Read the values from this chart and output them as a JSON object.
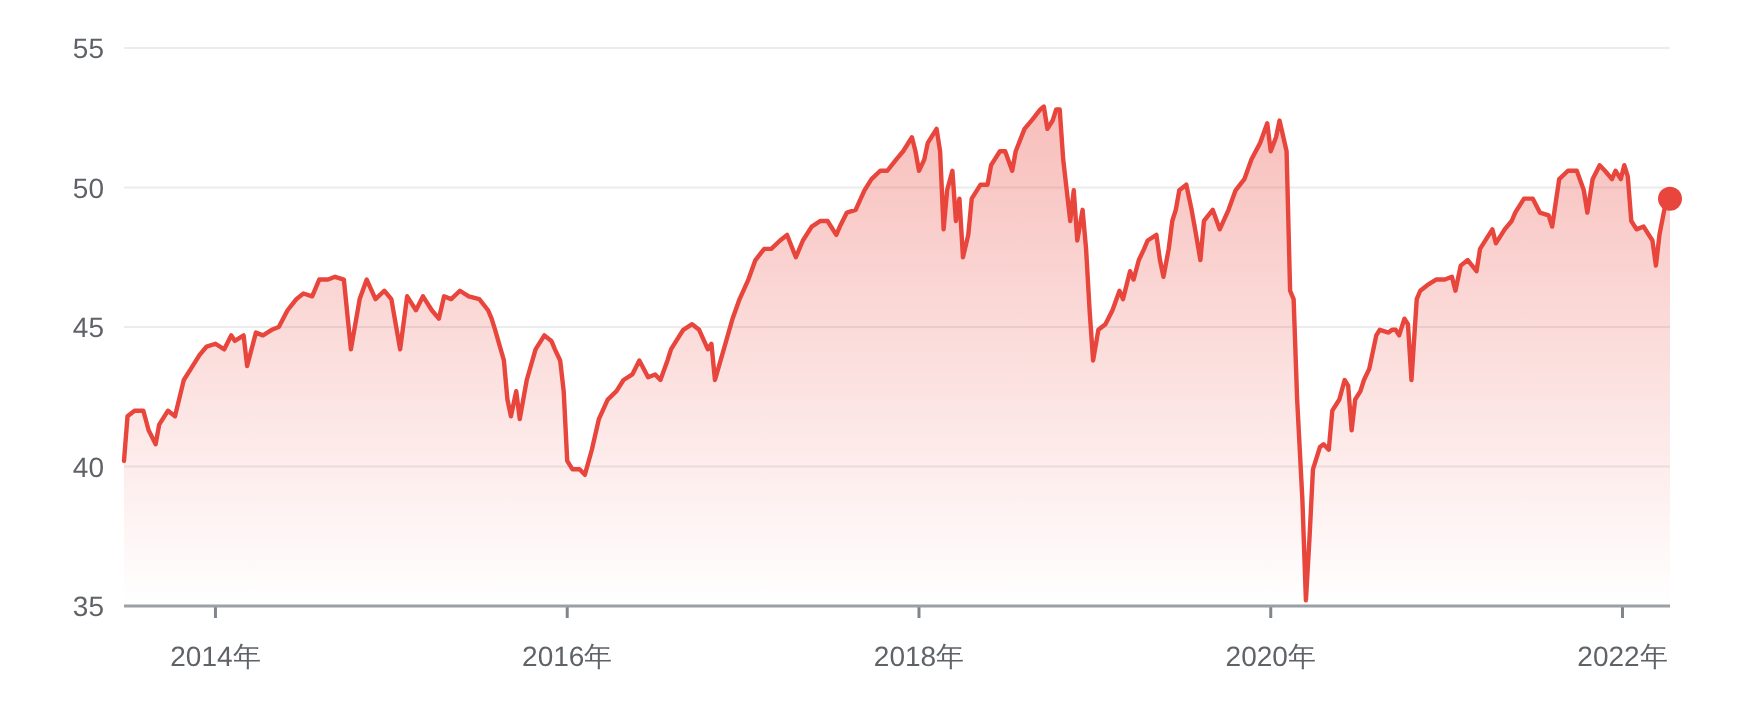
{
  "chart_data": {
    "type": "area",
    "xlim": [
      2013.48,
      2022.27
    ],
    "ylim": [
      35,
      55
    ],
    "xticks": [
      {
        "value": 2014,
        "label": "2014年"
      },
      {
        "value": 2016,
        "label": "2016年"
      },
      {
        "value": 2018,
        "label": "2018年"
      },
      {
        "value": 2020,
        "label": "2020年"
      },
      {
        "value": 2022,
        "label": "2022年"
      }
    ],
    "yticks": [
      35,
      40,
      45,
      50,
      55
    ],
    "grid": "y",
    "series": [
      {
        "color": "#e8453c",
        "x": [
          2013.48,
          2013.5,
          2013.54,
          2013.59,
          2013.62,
          2013.66,
          2013.68,
          2013.73,
          2013.77,
          2013.82,
          2013.86,
          2013.91,
          2013.95,
          2014.0,
          2014.05,
          2014.09,
          2014.11,
          2014.16,
          2014.18,
          2014.23,
          2014.27,
          2014.32,
          2014.36,
          2014.41,
          2014.46,
          2014.5,
          2014.55,
          2014.59,
          2014.64,
          2014.68,
          2014.73,
          2014.77,
          2014.82,
          2014.86,
          2014.91,
          2014.96,
          2015.0,
          2015.05,
          2015.09,
          2015.14,
          2015.18,
          2015.23,
          2015.27,
          2015.3,
          2015.34,
          2015.39,
          2015.44,
          2015.5,
          2015.55,
          2015.57,
          2015.59,
          2015.64,
          2015.66,
          2015.68,
          2015.71,
          2015.73,
          2015.77,
          2015.82,
          2015.87,
          2015.91,
          2015.93,
          2015.96,
          2015.98,
          2016.0,
          2016.03,
          2016.07,
          2016.1,
          2016.14,
          2016.18,
          2016.23,
          2016.28,
          2016.32,
          2016.37,
          2016.41,
          2016.46,
          2016.5,
          2016.53,
          2016.57,
          2016.59,
          2016.62,
          2016.66,
          2016.71,
          2016.75,
          2016.8,
          2016.82,
          2016.84,
          2016.89,
          2016.94,
          2016.98,
          2017.03,
          2017.07,
          2017.12,
          2017.16,
          2017.21,
          2017.25,
          2017.3,
          2017.34,
          2017.39,
          2017.44,
          2017.48,
          2017.53,
          2017.55,
          2017.59,
          2017.64,
          2017.69,
          2017.73,
          2017.78,
          2017.82,
          2017.87,
          2017.91,
          2017.96,
          2017.98,
          2018.0,
          2018.03,
          2018.05,
          2018.1,
          2018.12,
          2018.14,
          2018.16,
          2018.19,
          2018.21,
          2018.23,
          2018.25,
          2018.28,
          2018.3,
          2018.35,
          2018.39,
          2018.41,
          2018.46,
          2018.49,
          2018.53,
          2018.55,
          2018.6,
          2018.64,
          2018.69,
          2018.71,
          2018.73,
          2018.76,
          2018.78,
          2018.8,
          2018.82,
          2018.86,
          2018.88,
          2018.9,
          2018.93,
          2018.95,
          2018.97,
          2018.99,
          2019.02,
          2019.06,
          2019.1,
          2019.14,
          2019.16,
          2019.2,
          2019.22,
          2019.25,
          2019.28,
          2019.3,
          2019.35,
          2019.37,
          2019.39,
          2019.42,
          2019.44,
          2019.46,
          2019.48,
          2019.52,
          2019.55,
          2019.57,
          2019.6,
          2019.62,
          2019.67,
          2019.71,
          2019.76,
          2019.8,
          2019.85,
          2019.89,
          2019.94,
          2019.98,
          2020.0,
          2020.03,
          2020.05,
          2020.09,
          2020.11,
          2020.13,
          2020.15,
          2020.18,
          2020.2,
          2020.22,
          2020.24,
          2020.28,
          2020.3,
          2020.33,
          2020.35,
          2020.39,
          2020.42,
          2020.44,
          2020.46,
          2020.48,
          2020.51,
          2020.53,
          2020.56,
          2020.6,
          2020.62,
          2020.67,
          2020.69,
          2020.71,
          2020.73,
          2020.76,
          2020.78,
          2020.8,
          2020.83,
          2020.85,
          2020.89,
          2020.94,
          2020.99,
          2021.03,
          2021.05,
          2021.08,
          2021.12,
          2021.17,
          2021.19,
          2021.24,
          2021.26,
          2021.28,
          2021.33,
          2021.37,
          2021.39,
          2021.44,
          2021.49,
          2021.53,
          2021.58,
          2021.6,
          2021.64,
          2021.69,
          2021.74,
          2021.78,
          2021.8,
          2021.83,
          2021.87,
          2021.9,
          2021.94,
          2021.96,
          2021.99,
          2022.01,
          2022.03,
          2022.05,
          2022.08,
          2022.12,
          2022.17,
          2022.19,
          2022.21,
          2022.25,
          2022.27
        ],
        "values": [
          40.2,
          41.8,
          42.0,
          42.0,
          41.3,
          40.8,
          41.5,
          42.0,
          41.8,
          43.1,
          43.5,
          44.0,
          44.3,
          44.4,
          44.2,
          44.7,
          44.5,
          44.7,
          43.6,
          44.8,
          44.7,
          44.9,
          45.0,
          45.6,
          46.0,
          46.2,
          46.1,
          46.7,
          46.7,
          46.8,
          46.7,
          44.2,
          46.0,
          46.7,
          46.0,
          46.3,
          46.0,
          44.2,
          46.1,
          45.6,
          46.1,
          45.6,
          45.3,
          46.1,
          46.0,
          46.3,
          46.1,
          46.0,
          45.6,
          45.3,
          44.9,
          43.8,
          42.4,
          41.8,
          42.7,
          41.7,
          43.1,
          44.2,
          44.7,
          44.5,
          44.2,
          43.8,
          42.7,
          40.2,
          39.9,
          39.9,
          39.7,
          40.6,
          41.7,
          42.4,
          42.7,
          43.1,
          43.3,
          43.8,
          43.2,
          43.3,
          43.1,
          43.8,
          44.2,
          44.5,
          44.9,
          45.1,
          44.9,
          44.2,
          44.4,
          43.1,
          44.2,
          45.3,
          46.0,
          46.7,
          47.4,
          47.8,
          47.8,
          48.1,
          48.3,
          47.5,
          48.1,
          48.6,
          48.8,
          48.8,
          48.3,
          48.6,
          49.1,
          49.2,
          49.9,
          50.3,
          50.6,
          50.6,
          51.0,
          51.3,
          51.8,
          51.3,
          50.6,
          51.0,
          51.6,
          52.1,
          51.3,
          48.5,
          49.9,
          50.6,
          48.8,
          49.6,
          47.5,
          48.3,
          49.6,
          50.1,
          50.1,
          50.8,
          51.3,
          51.3,
          50.6,
          51.3,
          52.1,
          52.4,
          52.8,
          52.9,
          52.1,
          52.4,
          52.8,
          52.8,
          51.0,
          48.8,
          49.9,
          48.1,
          49.2,
          47.8,
          45.6,
          43.8,
          44.9,
          45.1,
          45.6,
          46.3,
          46.0,
          47.0,
          46.7,
          47.4,
          47.8,
          48.1,
          48.3,
          47.4,
          46.8,
          47.8,
          48.8,
          49.2,
          49.9,
          50.1,
          49.2,
          48.5,
          47.4,
          48.8,
          49.2,
          48.5,
          49.2,
          49.9,
          50.3,
          51.0,
          51.6,
          52.3,
          51.3,
          51.8,
          52.4,
          51.3,
          46.3,
          46.0,
          42.4,
          38.8,
          35.2,
          37.4,
          39.9,
          40.7,
          40.8,
          40.6,
          42.0,
          42.4,
          43.1,
          42.9,
          41.3,
          42.4,
          42.7,
          43.1,
          43.5,
          44.7,
          44.9,
          44.8,
          44.9,
          44.9,
          44.7,
          45.3,
          45.1,
          43.1,
          46.0,
          46.3,
          46.5,
          46.7,
          46.7,
          46.8,
          46.3,
          47.2,
          47.4,
          47.0,
          47.8,
          48.3,
          48.5,
          48.0,
          48.5,
          48.8,
          49.1,
          49.6,
          49.6,
          49.1,
          49.0,
          48.6,
          50.3,
          50.6,
          50.6,
          49.9,
          49.1,
          50.3,
          50.8,
          50.6,
          50.3,
          50.6,
          50.3,
          50.8,
          50.4,
          48.8,
          48.5,
          48.6,
          48.1,
          47.2,
          48.3,
          49.6,
          49.6
        ]
      },
      {
        "type": "scatter",
        "color": "#e8453c",
        "marker": "circle",
        "x": [
          2022.27
        ],
        "values": [
          49.6
        ]
      }
    ]
  }
}
